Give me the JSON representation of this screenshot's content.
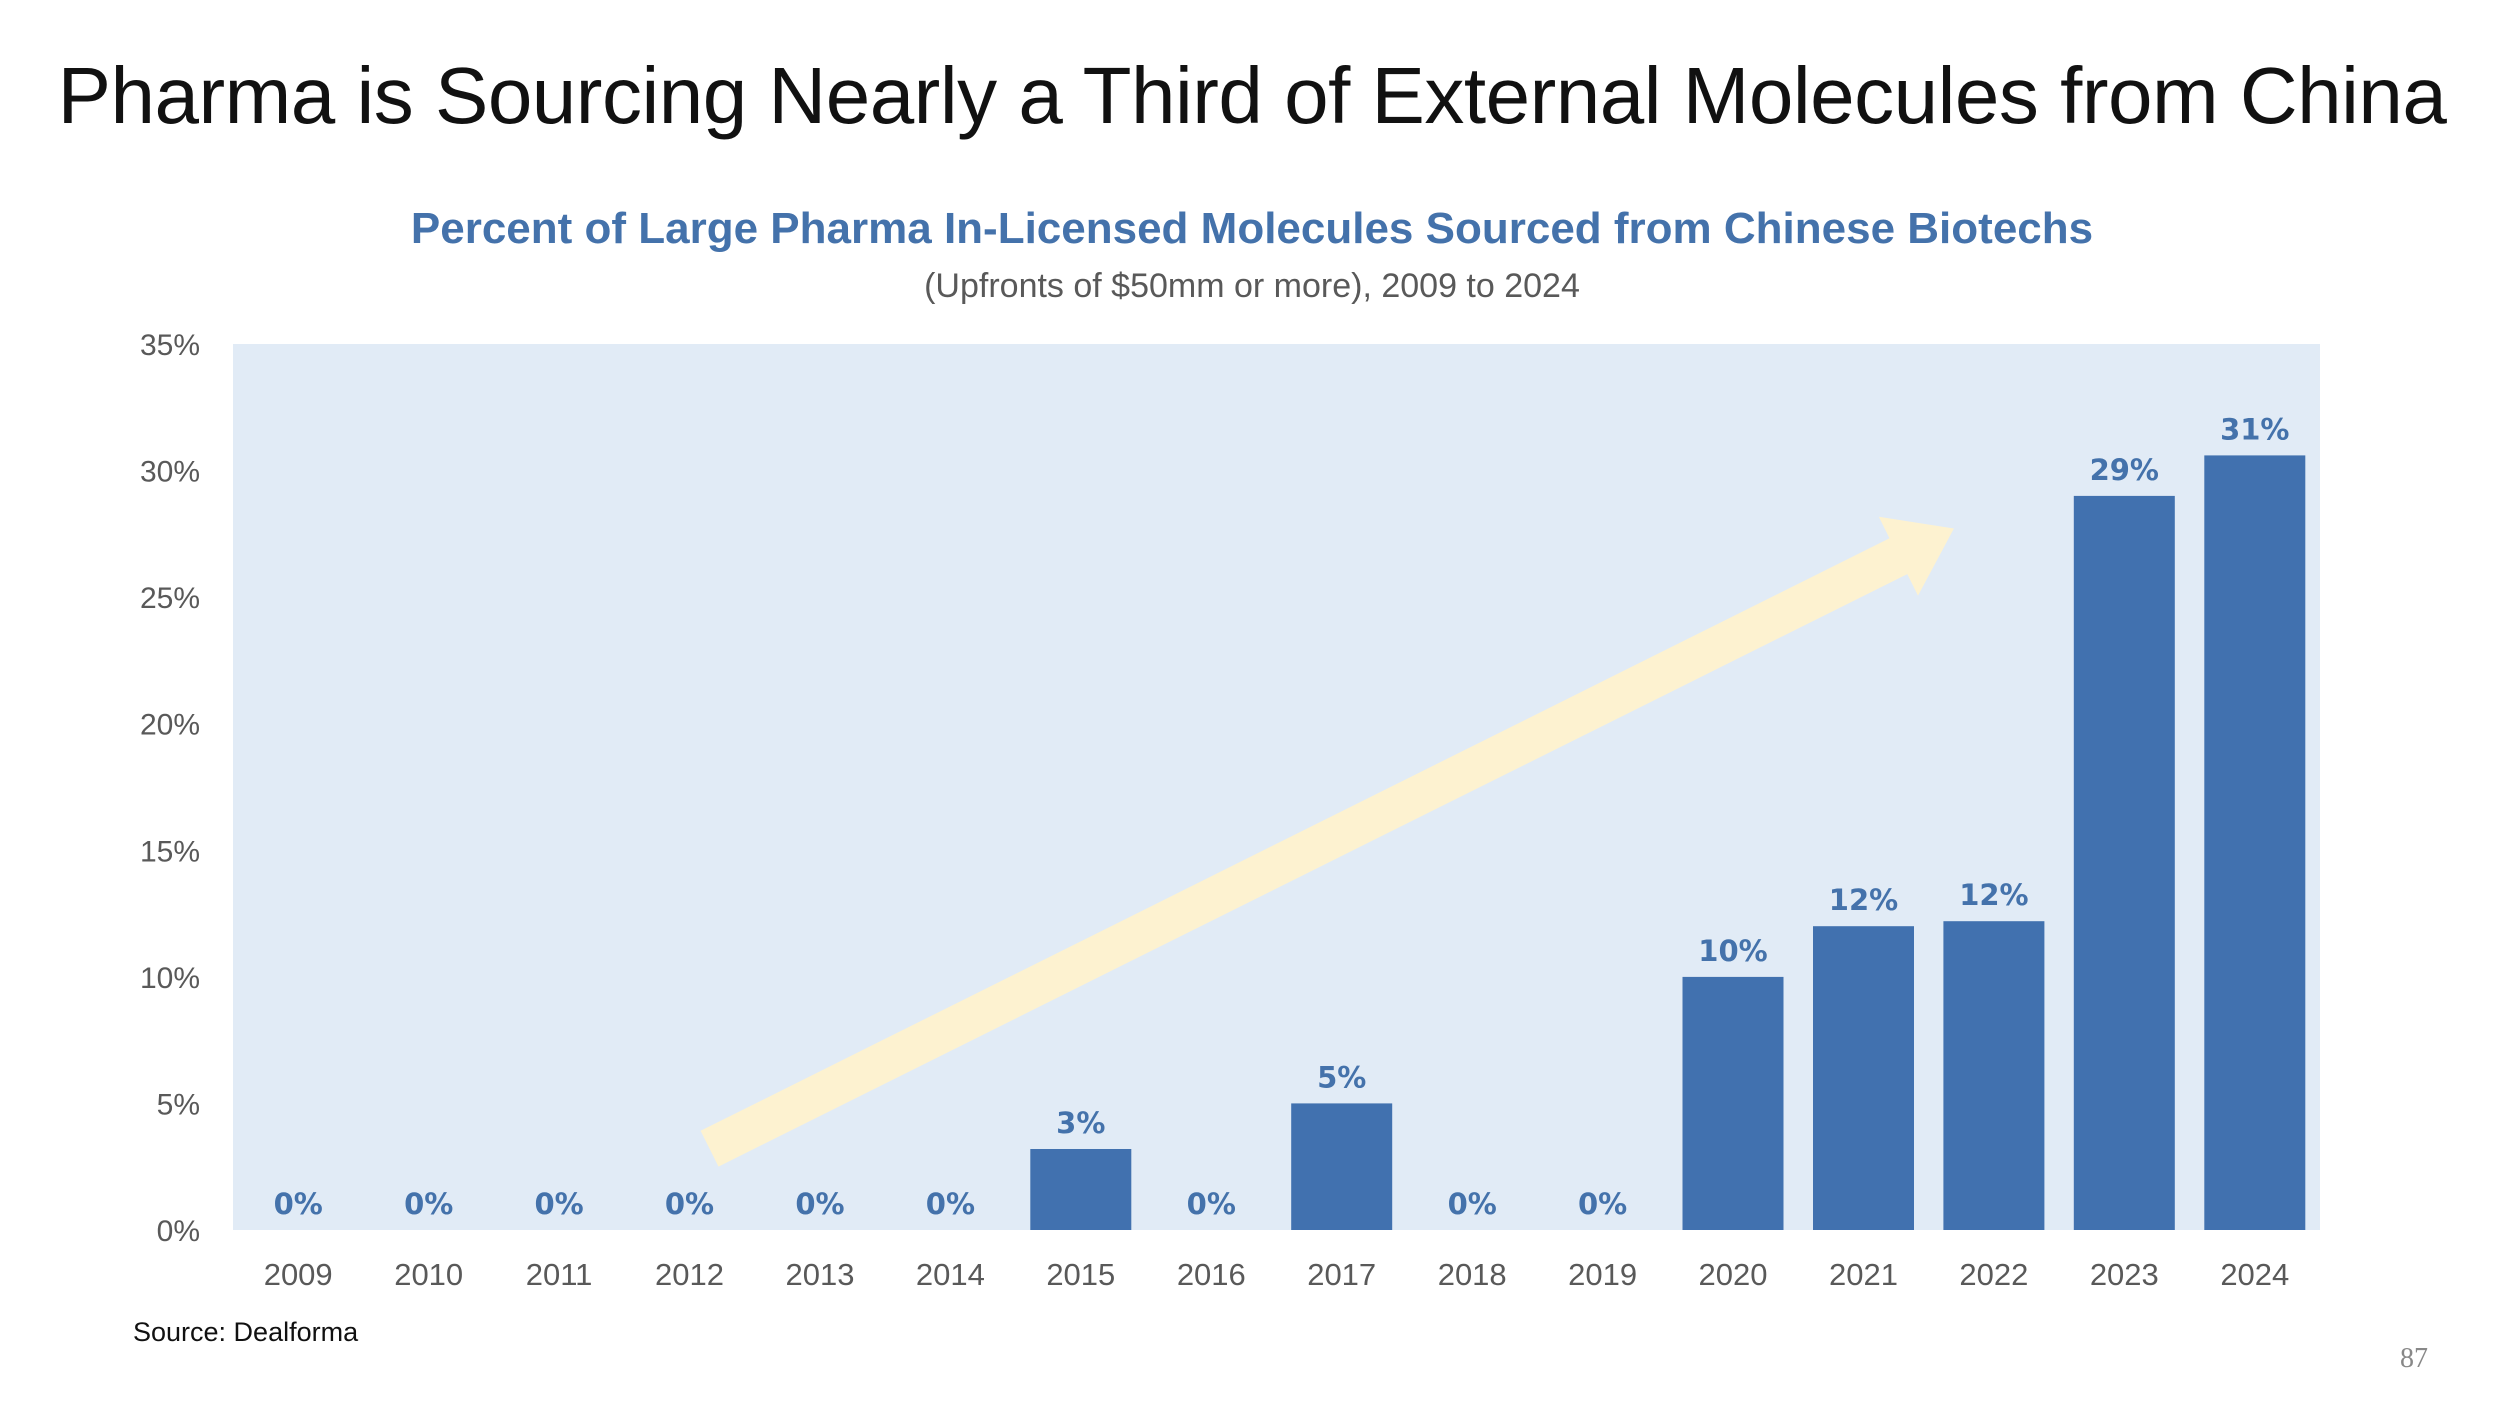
{
  "slide": {
    "title": "Pharma is Sourcing Nearly a Third of External Molecules from China",
    "source": "Source: Dealforma",
    "page_number": "87"
  },
  "colors": {
    "bar": "#4171af",
    "plot_background": "#e1ebf6",
    "arrow": "#fdf2d0",
    "data_label": "#4472ab",
    "axis_text": "#595959"
  },
  "chart_data": {
    "type": "bar",
    "title": "Percent of Large Pharma In-Licensed Molecules Sourced from Chinese Biotechs",
    "subtitle": "(Upfronts of $50mm or more), 2009 to 2024",
    "xlabel": "",
    "ylabel": "",
    "categories": [
      "2009",
      "2010",
      "2011",
      "2012",
      "2013",
      "2014",
      "2015",
      "2016",
      "2017",
      "2018",
      "2019",
      "2020",
      "2021",
      "2022",
      "2023",
      "2024"
    ],
    "values": [
      0,
      0,
      0,
      0,
      0,
      0,
      3.2,
      0,
      5,
      0,
      0,
      10,
      12,
      12.2,
      29,
      30.6
    ],
    "data_labels": [
      "0%",
      "0%",
      "0%",
      "0%",
      "0%",
      "0%",
      "3%",
      "0%",
      "5%",
      "0%",
      "0%",
      "10%",
      "12%",
      "12%",
      "29%",
      "31%"
    ],
    "ylim": [
      0,
      35
    ],
    "yticks": [
      0,
      5,
      10,
      15,
      20,
      25,
      30,
      35
    ],
    "ytick_labels": [
      "0%",
      "5%",
      "10%",
      "15%",
      "20%",
      "25%",
      "30%",
      "35%"
    ],
    "grid": false,
    "legend": "none",
    "annotation": {
      "type": "trend-arrow",
      "from": {
        "x": "2012",
        "y": 4
      },
      "to": {
        "x": "2022",
        "y": 28.5
      }
    }
  }
}
